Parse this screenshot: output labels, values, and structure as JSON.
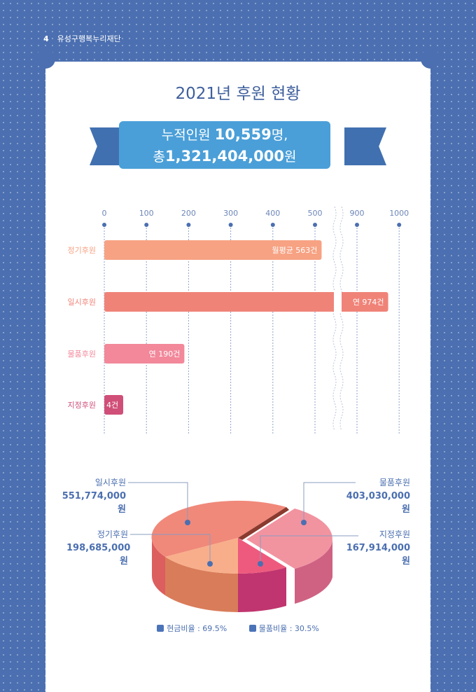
{
  "header": {
    "page_number": "4",
    "org": "유성구행복누리재단"
  },
  "title": "2021년 후원 현황",
  "summary": {
    "line1_prefix": "누적인원 ",
    "line1_value": "10,559",
    "line1_suffix": "명,",
    "line2_prefix": "총",
    "line2_value": "1,321,404,000",
    "line2_suffix": "원"
  },
  "chart_data": [
    {
      "type": "bar",
      "orientation": "horizontal",
      "axis_ticks": [
        "0",
        "100",
        "200",
        "300",
        "400",
        "500",
        "900",
        "1000"
      ],
      "axis_break": [
        500,
        900
      ],
      "categories": [
        "정기후원",
        "일시후원",
        "물품후원",
        "지정후원"
      ],
      "values": [
        563,
        974,
        190,
        4
      ],
      "data_labels": [
        "월평균 563건",
        "연 974건",
        "연 190건",
        "4건"
      ],
      "colors": [
        "#f7a283",
        "#f08378",
        "#f2889a",
        "#d04f78"
      ]
    },
    {
      "type": "pie",
      "style": "3d-exploded",
      "slices": [
        {
          "label": "일시후원",
          "value": 551774000,
          "value_label": "551,774,000원"
        },
        {
          "label": "정기후원",
          "value": 198685000,
          "value_label": "198,685,000원"
        },
        {
          "label": "지정후원",
          "value": 167914000,
          "value_label": "167,914,000원"
        },
        {
          "label": "물품후원",
          "value": 403030000,
          "value_label": "403,030,000원"
        }
      ],
      "legend": [
        "현금비율 : 69.5%",
        "물품비율 : 30.5%"
      ]
    }
  ]
}
